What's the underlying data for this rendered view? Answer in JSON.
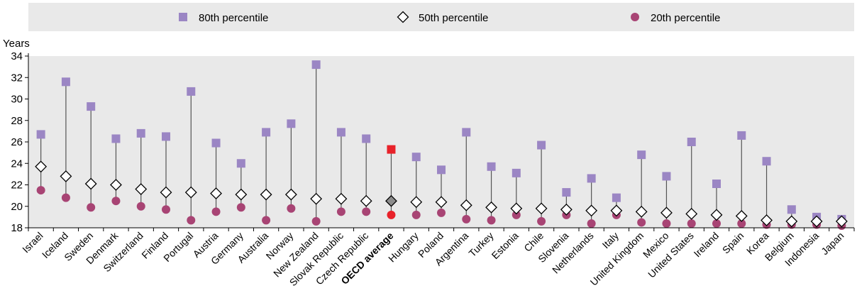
{
  "chart_data": {
    "type": "scatter",
    "ylabel": "Years",
    "ylim": [
      18,
      34
    ],
    "yticks": [
      18,
      20,
      22,
      24,
      26,
      28,
      30,
      32,
      34
    ],
    "grid": false,
    "legend_position": "top",
    "categories": [
      "Israel",
      "Iceland",
      "Sweden",
      "Denmark",
      "Switzerland",
      "Finland",
      "Portugal",
      "Austria",
      "Germany",
      "Australia",
      "Norway",
      "New Zealand",
      "Slovak Republic",
      "Czech Republic",
      "OECD average",
      "Hungary",
      "Poland",
      "Argentina",
      "Turkey",
      "Estonia",
      "Chile",
      "Slovenia",
      "Netherlands",
      "Italy",
      "United Kingdom",
      "Mexico",
      "United States",
      "Ireland",
      "Spain",
      "Korea",
      "Belgium",
      "Indonesia",
      "Japan"
    ],
    "highlight_category": "OECD average",
    "series": [
      {
        "name": "80th percentile",
        "marker": "square",
        "color": "#9b86c4",
        "values": [
          26.7,
          31.6,
          29.3,
          26.3,
          26.8,
          26.5,
          30.7,
          25.9,
          24.0,
          26.9,
          27.7,
          33.2,
          26.9,
          26.3,
          25.3,
          24.6,
          23.4,
          26.9,
          23.7,
          23.1,
          25.7,
          21.3,
          22.6,
          20.8,
          24.8,
          22.8,
          26.0,
          22.1,
          26.6,
          24.2,
          19.7,
          19.0,
          18.8
        ]
      },
      {
        "name": "50th percentile",
        "marker": "diamond",
        "color": "#000000",
        "values": [
          23.7,
          22.8,
          22.1,
          22.0,
          21.6,
          21.3,
          21.3,
          21.2,
          21.1,
          21.1,
          21.1,
          20.7,
          20.7,
          20.5,
          20.5,
          20.4,
          20.4,
          20.1,
          19.9,
          19.8,
          19.8,
          19.7,
          19.6,
          19.6,
          19.5,
          19.4,
          19.3,
          19.2,
          19.1,
          18.7,
          18.6,
          18.6,
          18.6
        ]
      },
      {
        "name": "20th percentile",
        "marker": "circle",
        "color": "#a84474",
        "values": [
          21.5,
          20.8,
          19.9,
          20.5,
          20.0,
          19.7,
          18.7,
          19.5,
          19.9,
          18.7,
          19.8,
          18.6,
          19.5,
          19.5,
          19.2,
          19.2,
          19.4,
          18.8,
          18.7,
          19.2,
          18.6,
          19.2,
          18.4,
          19.2,
          18.5,
          18.4,
          18.4,
          18.4,
          18.4,
          18.3,
          18.3,
          18.3,
          18.2
        ]
      }
    ],
    "highlight_colors": {
      "p80": "#e8222a",
      "p50": "#8c8c8c",
      "p20": "#e8222a"
    }
  },
  "colors": {
    "legend_background": "#e9e9e9",
    "plot_background": "#e9e9e9",
    "stem": "#555555"
  }
}
